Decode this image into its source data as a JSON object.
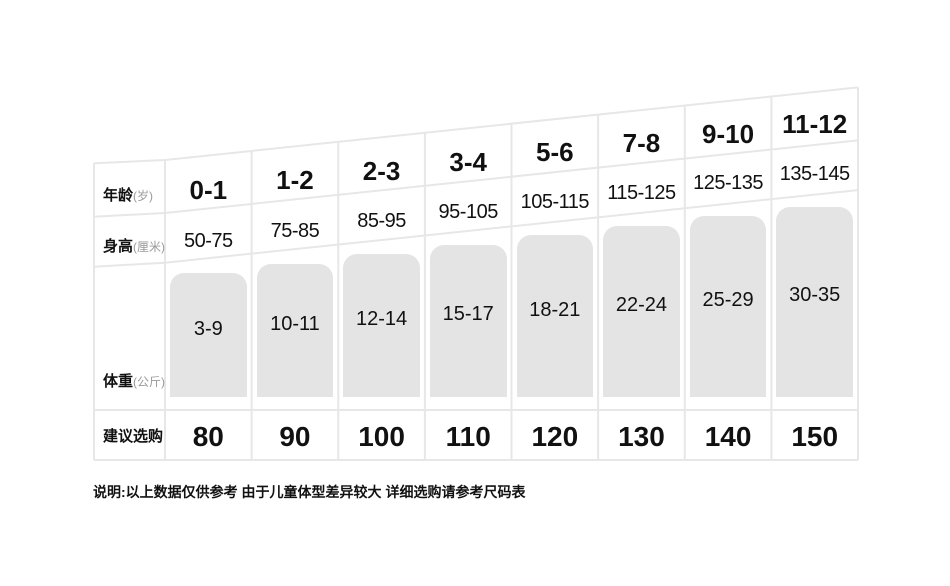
{
  "chart_data": {
    "type": "table",
    "description": "children clothing size chart, ascending slanted rows, weight shown as rounded gray bars of increasing height",
    "rows": [
      {
        "label": "年龄",
        "unit": "(岁)",
        "values": [
          "0-1",
          "1-2",
          "2-3",
          "3-4",
          "5-6",
          "7-8",
          "9-10",
          "11-12"
        ]
      },
      {
        "label": "身高",
        "unit": "(厘米)",
        "values": [
          "50-75",
          "75-85",
          "85-95",
          "95-105",
          "105-115",
          "115-125",
          "125-135",
          "135-145"
        ]
      },
      {
        "label": "体重",
        "unit": "(公斤)",
        "values": [
          "3-9",
          "10-11",
          "12-14",
          "15-17",
          "18-21",
          "22-24",
          "25-29",
          "30-35"
        ]
      },
      {
        "label": "建议选购",
        "unit": "",
        "values": [
          "80",
          "90",
          "100",
          "110",
          "120",
          "130",
          "140",
          "150"
        ]
      }
    ],
    "note": "说明:以上数据仅供参考 由于儿童体型差异较大 详细选购请参考尺码表"
  },
  "colors": {
    "bar_fill": "#e4e4e4",
    "grid_line": "#e7e7e7",
    "text": "#111111",
    "unit_text": "#999999",
    "background": "#ffffff"
  }
}
